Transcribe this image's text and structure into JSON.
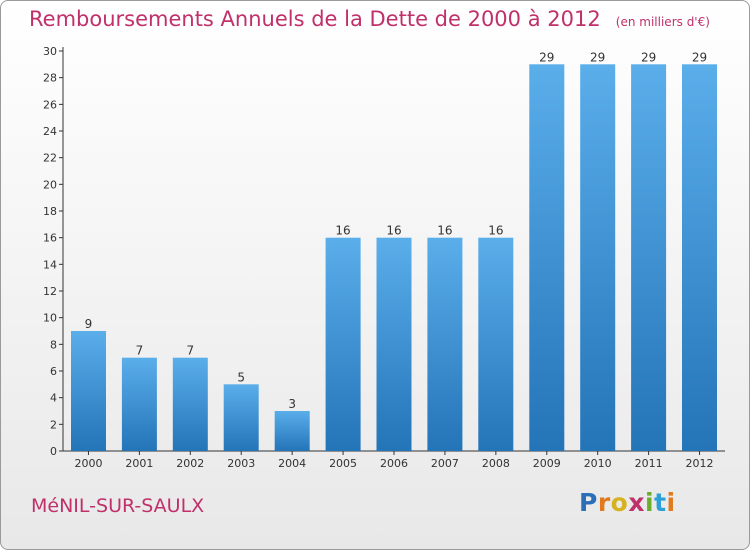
{
  "chart_data": {
    "type": "bar",
    "title": "Remboursements Annuels de la Dette de 2000 à 2012",
    "subtitle": "(en milliers d'€)",
    "categories": [
      "2000",
      "2001",
      "2002",
      "2003",
      "2004",
      "2005",
      "2006",
      "2007",
      "2008",
      "2009",
      "2010",
      "2011",
      "2012"
    ],
    "values": [
      9,
      7,
      7,
      5,
      3,
      16,
      16,
      16,
      16,
      29,
      29,
      29,
      29
    ],
    "ylim": [
      0,
      30
    ],
    "yticks": [
      0,
      2,
      4,
      6,
      8,
      10,
      12,
      14,
      16,
      18,
      20,
      22,
      24,
      26,
      28,
      30
    ],
    "xlabel": "",
    "ylabel": "",
    "grid": false,
    "bar_color_top": "#5aaeea",
    "bar_color_bottom": "#2474b8"
  },
  "footer": {
    "commune": "MéNIL-SUR-SAULX"
  },
  "logo": {
    "letters": [
      "P",
      "r",
      "o",
      "x",
      "i",
      "t",
      "i"
    ],
    "colors": [
      "#2a6fb8",
      "#e07a1c",
      "#d6b21e",
      "#c0306a",
      "#6cae2c",
      "#2a9fd8",
      "#e07a1c"
    ]
  }
}
